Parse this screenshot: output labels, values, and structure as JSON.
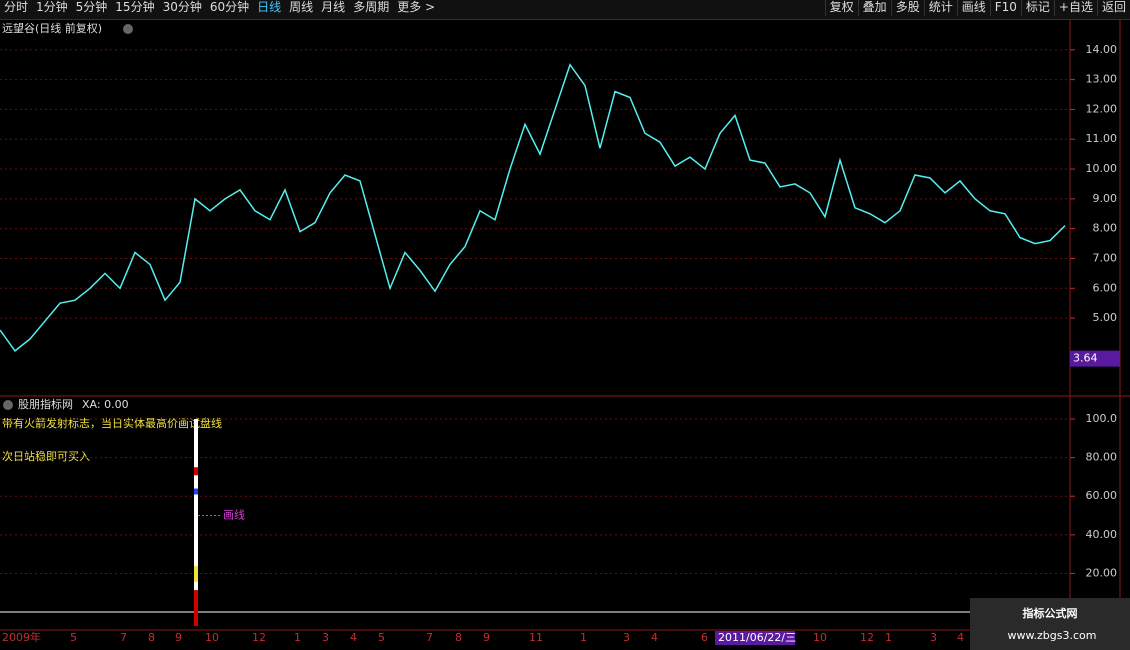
{
  "toolbar": {
    "periods": [
      "分时",
      "1分钟",
      "5分钟",
      "15分钟",
      "30分钟",
      "60分钟",
      "日线",
      "周线",
      "月线",
      "多周期"
    ],
    "more": "更多 >",
    "actions": [
      "复权",
      "叠加",
      "多股",
      "统计",
      "画线",
      "F10",
      "标记",
      "+自选",
      "返回"
    ]
  },
  "header": {
    "title": "远望谷(日线 前复权)"
  },
  "chart_data": [
    {
      "type": "line",
      "color": "#54f0f0",
      "values": [
        4.6,
        3.9,
        4.3,
        4.9,
        5.5,
        5.6,
        6.0,
        6.5,
        6.0,
        7.2,
        6.8,
        5.6,
        6.2,
        9.0,
        8.6,
        9.0,
        9.3,
        8.6,
        8.3,
        9.3,
        7.9,
        8.2,
        9.2,
        9.8,
        9.6,
        7.8,
        6.0,
        7.2,
        6.6,
        5.9,
        6.8,
        7.4,
        8.6,
        8.3,
        10.0,
        11.5,
        10.5,
        12.0,
        13.5,
        12.8,
        10.7,
        12.6,
        12.4,
        11.2,
        10.9,
        10.1,
        10.4,
        10.0,
        11.2,
        11.8,
        10.3,
        10.2,
        9.4,
        9.5,
        9.2,
        8.4,
        10.3,
        8.7,
        8.5,
        8.2,
        8.6,
        9.8,
        9.7,
        9.2,
        9.6,
        9.0,
        8.6,
        8.5,
        7.7,
        7.5,
        7.6,
        8.1
      ],
      "ylim": [
        2.42,
        15.0
      ],
      "yticks": [
        {
          "value": 5,
          "label": "5.00"
        },
        {
          "value": 6,
          "label": "6.00"
        },
        {
          "value": 7,
          "label": "7.00"
        },
        {
          "value": 8,
          "label": "8.00"
        },
        {
          "value": 9,
          "label": "9.00"
        },
        {
          "value": 10,
          "label": "10.00"
        },
        {
          "value": 11,
          "label": "11.00"
        },
        {
          "value": 12,
          "label": "12.00"
        },
        {
          "value": 13,
          "label": "13.00"
        },
        {
          "value": 14,
          "label": "14.00"
        }
      ],
      "cursor_value": 3.64,
      "x_labels": [
        "2009年",
        "5",
        "7",
        "8",
        "9",
        "10",
        "12",
        "1",
        "3",
        "4",
        "5",
        "7",
        "8",
        "9",
        "11",
        "1",
        "3",
        "4",
        "6",
        "10",
        "12",
        "1",
        "3",
        "4"
      ],
      "highlight_date": "2011/06/22/三",
      "grid": true
    },
    {
      "type": "bar",
      "title": "股朋指标网",
      "subtitle": "XA: 0.00",
      "annotations": [
        "带有火箭发射标志，当日实体最高价画试盘线",
        "次日站稳即可买入"
      ],
      "marker_label": "画线",
      "values": [
        100
      ],
      "color": "#ffffff",
      "ylim": [
        -9.3,
        111.4
      ],
      "yticks": [
        {
          "value": 20,
          "label": "20.00"
        },
        {
          "value": 40,
          "label": "40.00"
        },
        {
          "value": 60,
          "label": "60.00"
        },
        {
          "value": 80,
          "label": "80.00"
        },
        {
          "value": 100,
          "label": "100.0"
        }
      ],
      "grid": true
    }
  ],
  "watermark": {
    "title": "指标公式网",
    "url": "www.zbgs3.com"
  }
}
